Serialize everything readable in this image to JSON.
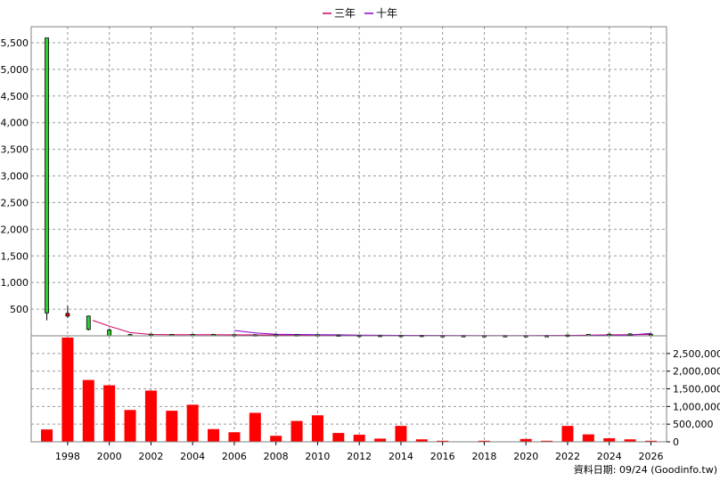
{
  "legend": {
    "items": [
      {
        "label": "三年",
        "color": "#cc0066"
      },
      {
        "label": "十年",
        "color": "#8800cc"
      }
    ]
  },
  "source_label": "資料日期: 09/24  (Goodinfo.tw)",
  "colors": {
    "candle_up": "#33cc33",
    "candle_down": "#ff0000",
    "volume_bar": "#ff0000",
    "grid": "#999999",
    "three_year": "#cc0066",
    "ten_year": "#8800cc"
  },
  "chart_data": [
    {
      "type": "candlestick",
      "xlim": [
        1996.25,
        2026.75
      ],
      "ylim": [
        0,
        5800
      ],
      "grid": true,
      "x_ticks": [
        1998,
        2000,
        2002,
        2004,
        2006,
        2008,
        2010,
        2012,
        2014,
        2016,
        2018,
        2020,
        2022,
        2024,
        2026
      ],
      "y_ticks": [
        {
          "value": 500,
          "label": "500"
        },
        {
          "value": 1000,
          "label": "1,000"
        },
        {
          "value": 1500,
          "label": "1,500"
        },
        {
          "value": 2000,
          "label": "2,000"
        },
        {
          "value": 2500,
          "label": "2,500"
        },
        {
          "value": 3000,
          "label": "3,000"
        },
        {
          "value": 3500,
          "label": "3,500"
        },
        {
          "value": 4000,
          "label": "4,000"
        },
        {
          "value": 4500,
          "label": "4,500"
        },
        {
          "value": 5000,
          "label": "5,000"
        },
        {
          "value": 5500,
          "label": "5,500"
        }
      ],
      "candles": [
        {
          "year": 1997,
          "open": 430,
          "close": 5590,
          "high": 5590,
          "low": 290
        },
        {
          "year": 1998,
          "open": 420,
          "close": 370,
          "high": 560,
          "low": 340
        },
        {
          "year": 1999,
          "open": 120,
          "close": 370,
          "high": 380,
          "low": 100
        },
        {
          "year": 2000,
          "open": 0,
          "close": 110,
          "high": 130,
          "low": 0
        },
        {
          "year": 2001,
          "open": 5,
          "close": 25,
          "high": 35,
          "low": 0
        },
        {
          "year": 2002,
          "open": 15,
          "close": 30,
          "high": 40,
          "low": 10
        },
        {
          "year": 2003,
          "open": 15,
          "close": 25,
          "high": 35,
          "low": 10
        },
        {
          "year": 2004,
          "open": 15,
          "close": 25,
          "high": 35,
          "low": 10
        },
        {
          "year": 2005,
          "open": 15,
          "close": 25,
          "high": 35,
          "low": 10
        },
        {
          "year": 2006,
          "open": 10,
          "close": 20,
          "high": 30,
          "low": 5
        },
        {
          "year": 2007,
          "open": 10,
          "close": 20,
          "high": 30,
          "low": 5
        },
        {
          "year": 2008,
          "open": 10,
          "close": 20,
          "high": 25,
          "low": 5
        },
        {
          "year": 2009,
          "open": 10,
          "close": 20,
          "high": 25,
          "low": 5
        },
        {
          "year": 2010,
          "open": 10,
          "close": 20,
          "high": 25,
          "low": 5
        },
        {
          "year": 2011,
          "open": 5,
          "close": 15,
          "high": 20,
          "low": 0
        },
        {
          "year": 2012,
          "open": 5,
          "close": 10,
          "high": 15,
          "low": 0
        },
        {
          "year": 2013,
          "open": 5,
          "close": 10,
          "high": 15,
          "low": 0
        },
        {
          "year": 2014,
          "open": 5,
          "close": 10,
          "high": 15,
          "low": 0
        },
        {
          "year": 2015,
          "open": 5,
          "close": 10,
          "high": 15,
          "low": 0
        },
        {
          "year": 2016,
          "open": 0,
          "close": 5,
          "high": 10,
          "low": 0
        },
        {
          "year": 2017,
          "open": 0,
          "close": 5,
          "high": 10,
          "low": 0
        },
        {
          "year": 2018,
          "open": 0,
          "close": 5,
          "high": 10,
          "low": 0
        },
        {
          "year": 2019,
          "open": 0,
          "close": 5,
          "high": 10,
          "low": 0
        },
        {
          "year": 2020,
          "open": 0,
          "close": 5,
          "high": 10,
          "low": 0
        },
        {
          "year": 2021,
          "open": 0,
          "close": 5,
          "high": 10,
          "low": 0
        },
        {
          "year": 2022,
          "open": 5,
          "close": 15,
          "high": 25,
          "low": 0
        },
        {
          "year": 2023,
          "open": 10,
          "close": 25,
          "high": 35,
          "low": 5
        },
        {
          "year": 2024,
          "open": 15,
          "close": 30,
          "high": 45,
          "low": 10
        },
        {
          "year": 2025,
          "open": 20,
          "close": 35,
          "high": 50,
          "low": 15
        },
        {
          "year": 2026,
          "open": 20,
          "close": 30,
          "high": 45,
          "low": 15
        }
      ],
      "series": [
        {
          "name": "三年",
          "x": [
            1999.2,
            2000,
            2001,
            2002,
            2003,
            2004,
            2005,
            2006,
            2007,
            2008,
            2009,
            2010,
            2011,
            2012,
            2013,
            2014,
            2015,
            2016,
            2017,
            2018,
            2019,
            2020,
            2021,
            2022,
            2023,
            2024,
            2025,
            2026
          ],
          "values": [
            290,
            180,
            60,
            25,
            20,
            20,
            20,
            18,
            16,
            15,
            14,
            13,
            10,
            8,
            6,
            5,
            4,
            3,
            2,
            2,
            2,
            2,
            3,
            6,
            12,
            18,
            22,
            25
          ]
        },
        {
          "name": "十年",
          "x": [
            2006,
            2007,
            2008,
            2009,
            2010,
            2011,
            2012,
            2013,
            2014,
            2015,
            2016,
            2017,
            2018,
            2019,
            2020,
            2021,
            2022,
            2023,
            2024,
            2025,
            2026
          ],
          "values": [
            100,
            55,
            30,
            25,
            22,
            18,
            14,
            10,
            8,
            6,
            5,
            3,
            2,
            2,
            2,
            3,
            4,
            6,
            10,
            15,
            45
          ]
        }
      ]
    },
    {
      "type": "bar",
      "xlim": [
        1996.25,
        2026.75
      ],
      "ylim": [
        0,
        3000000
      ],
      "grid": true,
      "y_ticks": [
        {
          "value": 0,
          "label": "0"
        },
        {
          "value": 500000,
          "label": "500,000"
        },
        {
          "value": 1000000,
          "label": "1,000,000"
        },
        {
          "value": 1500000,
          "label": "1,500,000"
        },
        {
          "value": 2000000,
          "label": "2,000,000"
        },
        {
          "value": 2500000,
          "label": "2,500,000"
        }
      ],
      "categories": [
        1997,
        1998,
        1999,
        2000,
        2001,
        2002,
        2003,
        2004,
        2005,
        2006,
        2007,
        2008,
        2009,
        2010,
        2011,
        2012,
        2013,
        2014,
        2015,
        2016,
        2017,
        2018,
        2019,
        2020,
        2021,
        2022,
        2023,
        2024,
        2025,
        2026
      ],
      "values": [
        350000,
        2950000,
        1750000,
        1600000,
        900000,
        1450000,
        880000,
        1050000,
        360000,
        270000,
        820000,
        170000,
        590000,
        750000,
        250000,
        200000,
        90000,
        450000,
        70000,
        30000,
        10000,
        30000,
        10000,
        80000,
        30000,
        450000,
        210000,
        100000,
        70000,
        30000
      ]
    }
  ]
}
